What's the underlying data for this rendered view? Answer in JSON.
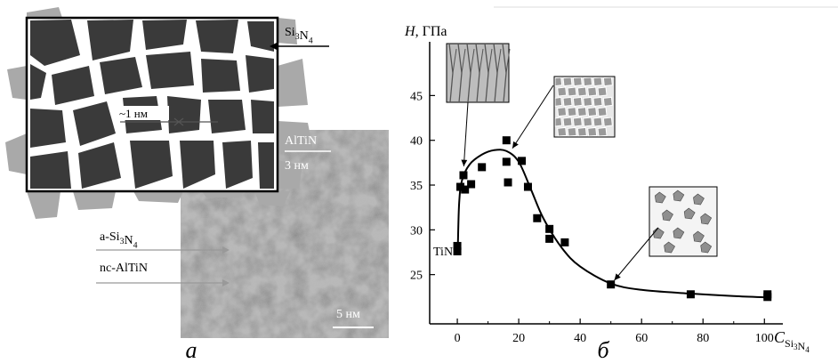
{
  "panel_a": {
    "labels": {
      "si3n4": "Si3N4",
      "spacing": "~1 нм",
      "altin": "AlTiN",
      "altin_size": "3 нм",
      "a_si3n4": "a-Si3N4",
      "nc_altin": "nc-AlTiN",
      "scale_bar": "5 нм"
    },
    "caption": "а",
    "colors": {
      "grain": "#3a3a3a",
      "boundary": "#ffffff",
      "halo": "#a9a9a9"
    }
  },
  "panel_b": {
    "caption": "б",
    "point_label": "TiN",
    "chart_data": {
      "type": "scatter",
      "ylabel": "H, ГПа",
      "xlabel": "CSi3N4",
      "xlim": [
        -9,
        106
      ],
      "ylim": [
        19.5,
        51
      ],
      "xticks": [
        0,
        20,
        40,
        60,
        80,
        100
      ],
      "yticks": [
        25,
        30,
        35,
        40,
        45
      ],
      "grid": false,
      "points": [
        {
          "x": 0,
          "y": 28.2
        },
        {
          "x": 0,
          "y": 27.6
        },
        {
          "x": 1,
          "y": 34.8
        },
        {
          "x": 2,
          "y": 36.1
        },
        {
          "x": 2.5,
          "y": 34.5
        },
        {
          "x": 4.5,
          "y": 35.1
        },
        {
          "x": 8,
          "y": 37.0
        },
        {
          "x": 16,
          "y": 40.0
        },
        {
          "x": 16,
          "y": 37.6
        },
        {
          "x": 16.5,
          "y": 35.3
        },
        {
          "x": 21,
          "y": 37.7
        },
        {
          "x": 23,
          "y": 34.8
        },
        {
          "x": 26,
          "y": 31.3
        },
        {
          "x": 30,
          "y": 30.1
        },
        {
          "x": 30,
          "y": 29.0
        },
        {
          "x": 35,
          "y": 28.6
        },
        {
          "x": 50,
          "y": 23.9
        },
        {
          "x": 76,
          "y": 22.8
        },
        {
          "x": 101,
          "y": 22.5
        },
        {
          "x": 101,
          "y": 22.8
        }
      ],
      "fit_curve": [
        {
          "x": 0.2,
          "y": 28.5
        },
        {
          "x": 0.6,
          "y": 33
        },
        {
          "x": 1.5,
          "y": 35.5
        },
        {
          "x": 4,
          "y": 37.3
        },
        {
          "x": 8,
          "y": 38.4
        },
        {
          "x": 12,
          "y": 38.9
        },
        {
          "x": 16,
          "y": 38.8
        },
        {
          "x": 20,
          "y": 37.6
        },
        {
          "x": 24,
          "y": 34.5
        },
        {
          "x": 28,
          "y": 31.3
        },
        {
          "x": 34,
          "y": 28.0
        },
        {
          "x": 40,
          "y": 25.9
        },
        {
          "x": 50,
          "y": 24.0
        },
        {
          "x": 60,
          "y": 23.3
        },
        {
          "x": 75,
          "y": 22.9
        },
        {
          "x": 90,
          "y": 22.6
        },
        {
          "x": 101,
          "y": 22.45
        }
      ],
      "insets": [
        {
          "name": "columnar-structure",
          "points_to": {
            "x": 2,
            "y": 36.5
          }
        },
        {
          "name": "nanocomposite-structure",
          "points_to": {
            "x": 17,
            "y": 38.6
          }
        },
        {
          "name": "isolated-grains-structure",
          "points_to": {
            "x": 50,
            "y": 23.9
          }
        }
      ]
    }
  }
}
